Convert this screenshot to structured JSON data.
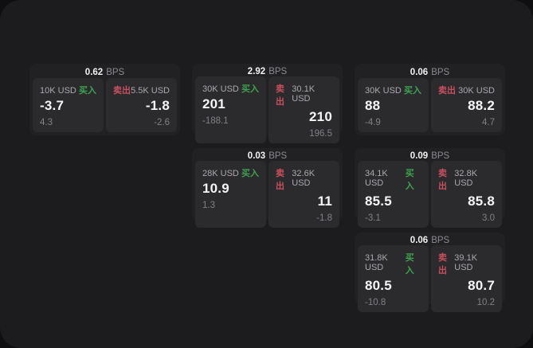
{
  "colors": {
    "buy": "#3da24f",
    "sell": "#ca4f5d",
    "panel_bg": "#1c1c1e",
    "card_bg": "#212124",
    "cell_bg": "#2b2b2e"
  },
  "labels": {
    "bps_unit": "BPS",
    "buy": "买入",
    "sell": "卖出"
  },
  "cards": [
    {
      "bps": "0.62",
      "buy": {
        "amount": "10K USD",
        "side": "买入",
        "value": "-3.7",
        "sub": "4.3"
      },
      "sell": {
        "side": "卖出",
        "amount": "5.5K USD",
        "value": "-1.8",
        "sub": "-2.6"
      }
    },
    {
      "bps": "2.92",
      "buy": {
        "amount": "30K USD",
        "side": "买入",
        "value": "201",
        "sub": "-188.1"
      },
      "sell": {
        "side": "卖出",
        "amount": "30.1K USD",
        "value": "210",
        "sub": "196.5"
      }
    },
    {
      "bps": "0.06",
      "buy": {
        "amount": "30K USD",
        "side": "买入",
        "value": "88",
        "sub": "-4.9"
      },
      "sell": {
        "side": "卖出",
        "amount": "30K USD",
        "value": "88.2",
        "sub": "4.7"
      }
    },
    {
      "bps": "0.03",
      "buy": {
        "amount": "28K USD",
        "side": "买入",
        "value": "10.9",
        "sub": "1.3"
      },
      "sell": {
        "side": "卖出",
        "amount": "32.6K USD",
        "value": "11",
        "sub": "-1.8"
      }
    },
    {
      "bps": "0.09",
      "buy": {
        "amount": "34.1K USD",
        "side": "买入",
        "value": "85.5",
        "sub": "-3.1"
      },
      "sell": {
        "side": "卖出",
        "amount": "32.8K USD",
        "value": "85.8",
        "sub": "3.0"
      }
    },
    {
      "bps": "0.06",
      "buy": {
        "amount": "31.8K USD",
        "side": "买入",
        "value": "80.5",
        "sub": "-10.8"
      },
      "sell": {
        "side": "卖出",
        "amount": "39.1K USD",
        "value": "80.7",
        "sub": "10.2"
      }
    }
  ]
}
